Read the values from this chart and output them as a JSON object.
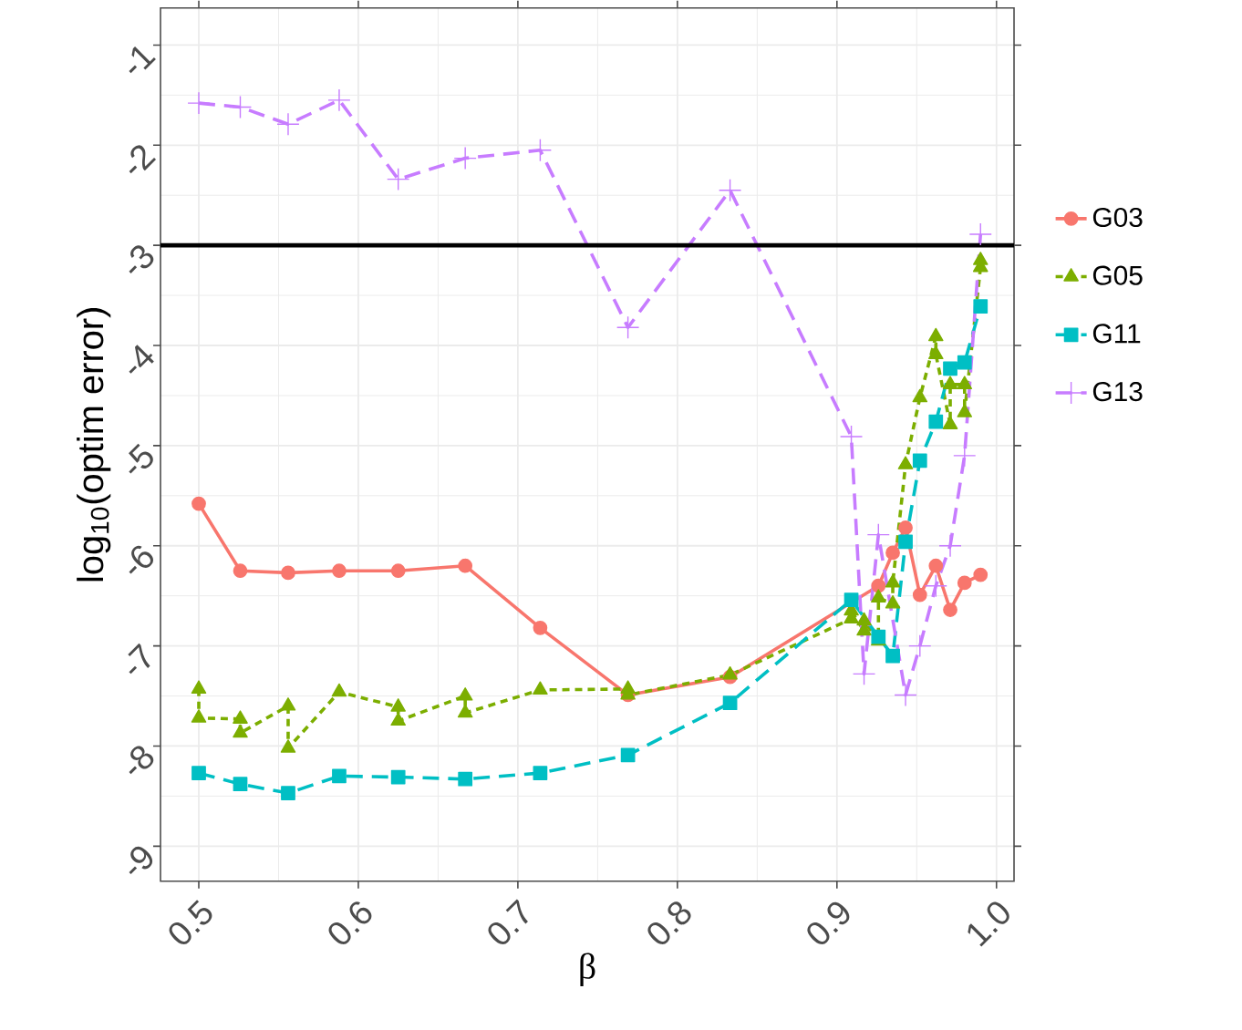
{
  "chart_data": {
    "type": "line",
    "xlabel": "β",
    "ylabel": "log$_{10}$(optim error)",
    "xlim": [
      0.476,
      1.011
    ],
    "ylim": [
      -9.35,
      -0.63
    ],
    "xticks": [
      {
        "value": 0.5,
        "label": "0.5"
      },
      {
        "value": 0.6,
        "label": "0.6"
      },
      {
        "value": 0.7,
        "label": "0.7"
      },
      {
        "value": 0.8,
        "label": "0.8"
      },
      {
        "value": 0.9,
        "label": "0.9"
      },
      {
        "value": 1.0,
        "label": "1.0"
      }
    ],
    "yticks": [
      -9,
      -8,
      -7,
      -6,
      -5,
      -4,
      -3,
      -2,
      -1
    ],
    "grid": true,
    "legend": "right",
    "ref_lines": [
      {
        "axis": "y",
        "value": -3,
        "color": "#000000"
      }
    ],
    "series": [
      {
        "name": "G03",
        "color": "#F8766D",
        "marker": "circle",
        "line_style": "solid",
        "x": [
          0.5,
          0.526,
          0.556,
          0.588,
          0.625,
          0.667,
          0.714,
          0.769,
          0.833,
          0.909,
          0.917,
          0.926,
          0.935,
          0.943,
          0.952,
          0.962,
          0.971,
          0.98,
          0.99
        ],
        "values": [
          -5.58,
          -6.25,
          -6.27,
          -6.25,
          -6.25,
          -6.2,
          -6.82,
          -7.49,
          -7.31,
          null,
          null,
          -6.4,
          -6.07,
          -5.82,
          -6.49,
          -6.2,
          -6.64,
          -6.37,
          -6.29
        ]
      },
      {
        "name": "G05",
        "color": "#7CAE00",
        "marker": "triangle",
        "line_style": "dotted",
        "x": [
          0.5,
          0.5,
          0.526,
          0.526,
          0.556,
          0.556,
          0.588,
          0.625,
          0.625,
          0.667,
          0.667,
          0.714,
          0.769,
          0.769,
          0.833,
          0.909,
          0.909,
          0.917,
          0.917,
          0.926,
          0.926,
          0.935,
          0.935,
          0.943,
          0.952,
          0.962,
          0.962,
          0.971,
          0.971,
          0.98,
          0.98,
          0.99,
          0.99
        ],
        "values": [
          -7.43,
          -7.72,
          -7.73,
          -7.87,
          -7.6,
          -8.02,
          -7.46,
          -7.61,
          -7.75,
          -7.5,
          -7.67,
          -7.44,
          -7.43,
          -7.49,
          -7.29,
          -6.73,
          -6.65,
          -6.85,
          -6.75,
          -6.95,
          -6.52,
          -6.58,
          -6.37,
          -5.19,
          -4.52,
          -3.91,
          -4.09,
          -4.79,
          -4.39,
          -4.39,
          -4.67,
          -3.22,
          -3.15
        ]
      },
      {
        "name": "G11",
        "color": "#00BFC4",
        "marker": "square",
        "line_style": "dashed",
        "x": [
          0.5,
          0.526,
          0.556,
          0.588,
          0.625,
          0.667,
          0.714,
          0.769,
          0.833,
          0.909,
          0.917,
          0.926,
          0.935,
          0.943,
          0.952,
          0.962,
          0.971,
          0.98,
          0.99
        ],
        "values": [
          -8.27,
          -8.38,
          -8.47,
          -8.3,
          -8.31,
          -8.33,
          -8.27,
          -8.09,
          -7.57,
          -6.54,
          null,
          -6.91,
          -7.1,
          -5.96,
          -5.15,
          -4.76,
          -4.23,
          -4.17,
          -3.61
        ]
      },
      {
        "name": "G13",
        "color": "#C77CFF",
        "marker": "cross",
        "line_style": "dashed",
        "x": [
          0.5,
          0.526,
          0.556,
          0.588,
          0.625,
          0.667,
          0.714,
          0.769,
          0.833,
          0.909,
          0.917,
          0.926,
          0.935,
          0.943,
          0.952,
          0.962,
          0.971,
          0.98,
          0.99
        ],
        "values": [
          -1.58,
          -1.62,
          -1.79,
          -1.55,
          -2.34,
          -2.13,
          -2.05,
          -3.82,
          -2.45,
          -4.91,
          -7.28,
          -5.89,
          null,
          -7.49,
          -7.0,
          -6.4,
          -6.0,
          -5.1,
          -2.89
        ]
      }
    ]
  }
}
